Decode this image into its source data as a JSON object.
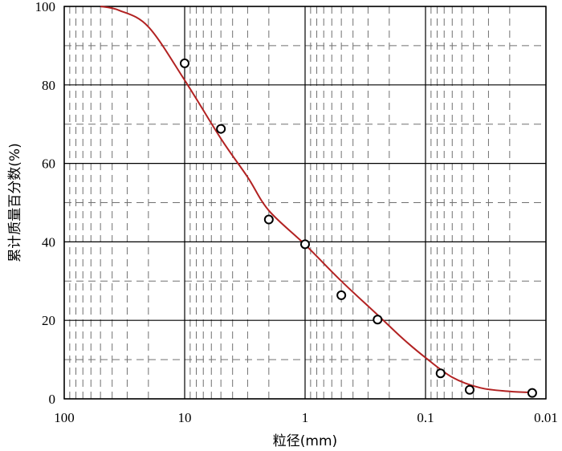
{
  "chart_data": {
    "type": "scatter",
    "xlabel": "粒径(mm)",
    "ylabel": "累计质量百分数(%)",
    "x_scale": "log",
    "x_reversed": true,
    "xlim": [
      100,
      0.01
    ],
    "ylim": [
      0,
      100
    ],
    "grid": true,
    "x_tick_labels": [
      "100",
      "10",
      "1",
      "0.1",
      "0.01"
    ],
    "x_tick_values": [
      100,
      10,
      1,
      0.1,
      0.01
    ],
    "y_tick_labels": [
      "0",
      "20",
      "40",
      "60",
      "80",
      "100"
    ],
    "y_tick_values": [
      0,
      20,
      40,
      60,
      80,
      100
    ],
    "points": [
      {
        "x": 10,
        "y": 85.5
      },
      {
        "x": 5,
        "y": 68.8
      },
      {
        "x": 2,
        "y": 45.7
      },
      {
        "x": 1,
        "y": 39.4
      },
      {
        "x": 0.5,
        "y": 26.4
      },
      {
        "x": 0.25,
        "y": 20.2
      },
      {
        "x": 0.075,
        "y": 6.5
      },
      {
        "x": 0.043,
        "y": 2.3
      },
      {
        "x": 0.013,
        "y": 1.5
      }
    ],
    "curve": [
      {
        "x": 50,
        "y": 100
      },
      {
        "x": 35,
        "y": 99
      },
      {
        "x": 20,
        "y": 94.8
      },
      {
        "x": 10,
        "y": 81.2
      },
      {
        "x": 5,
        "y": 66.3
      },
      {
        "x": 3,
        "y": 56.5
      },
      {
        "x": 2,
        "y": 48
      },
      {
        "x": 1,
        "y": 39.3
      },
      {
        "x": 0.5,
        "y": 30
      },
      {
        "x": 0.25,
        "y": 21.4
      },
      {
        "x": 0.15,
        "y": 15
      },
      {
        "x": 0.1,
        "y": 10.5
      },
      {
        "x": 0.06,
        "y": 5.5
      },
      {
        "x": 0.035,
        "y": 2.8
      },
      {
        "x": 0.02,
        "y": 1.9
      },
      {
        "x": 0.013,
        "y": 1.6
      }
    ],
    "colors": {
      "curve": "#b22222",
      "grid_major": "#000000",
      "grid_minor": "#707070",
      "marker_fill": "#ffffff",
      "marker_stroke": "#000000"
    }
  }
}
